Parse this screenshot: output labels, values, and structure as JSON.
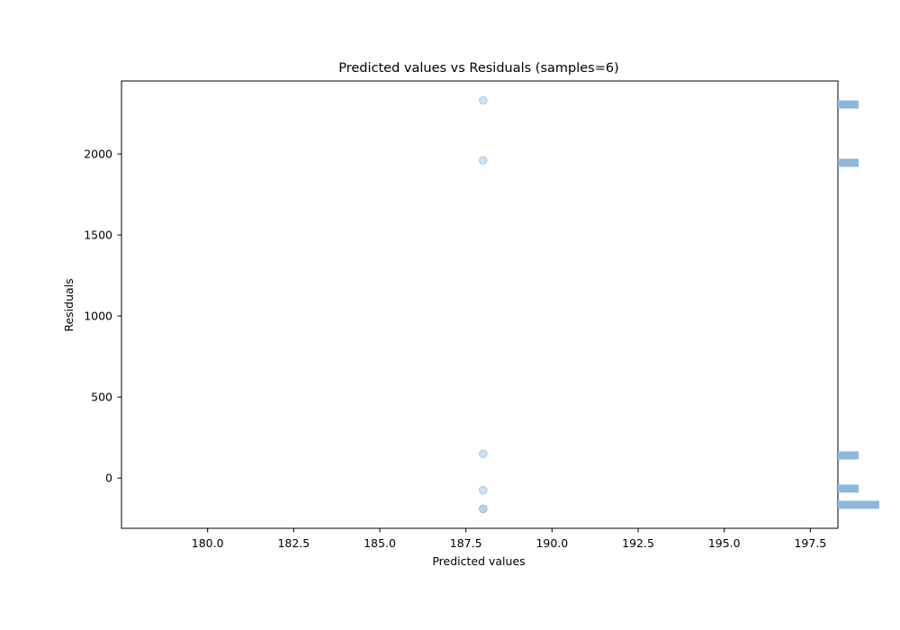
{
  "chart_data": {
    "type": "scatter",
    "title": "Predicted values vs Residuals (samples=6)",
    "xlabel": "Predicted values",
    "ylabel": "Residuals",
    "xlim": [
      177.5,
      198.3
    ],
    "ylim": [
      -310,
      2450
    ],
    "x_ticks": [
      180.0,
      182.5,
      185.0,
      187.5,
      190.0,
      192.5,
      195.0,
      197.5
    ],
    "x_tick_labels": [
      "180.0",
      "182.5",
      "185.0",
      "187.5",
      "190.0",
      "192.5",
      "195.0",
      "197.5"
    ],
    "y_ticks": [
      0,
      500,
      1000,
      1500,
      2000
    ],
    "y_tick_labels": [
      "0",
      "500",
      "1000",
      "1500",
      "2000"
    ],
    "points": [
      {
        "x": 188.0,
        "y": 2330
      },
      {
        "x": 188.0,
        "y": 1960
      },
      {
        "x": 188.0,
        "y": 150
      },
      {
        "x": 188.0,
        "y": -75
      },
      {
        "x": 188.0,
        "y": -190
      },
      {
        "x": 188.0,
        "y": -190
      }
    ],
    "marginal_histogram": {
      "orientation": "horizontal",
      "bins": [
        {
          "y": 2305,
          "count": 1
        },
        {
          "y": 1945,
          "count": 1
        },
        {
          "y": 140,
          "count": 1
        },
        {
          "y": -65,
          "count": 1
        },
        {
          "y": -165,
          "count": 2
        }
      ]
    },
    "grid": false,
    "colors": {
      "point": "#a9c8e8",
      "point_edge": "#7fa9d4",
      "histogram": "#8db7d9",
      "axes": "#000000"
    }
  }
}
